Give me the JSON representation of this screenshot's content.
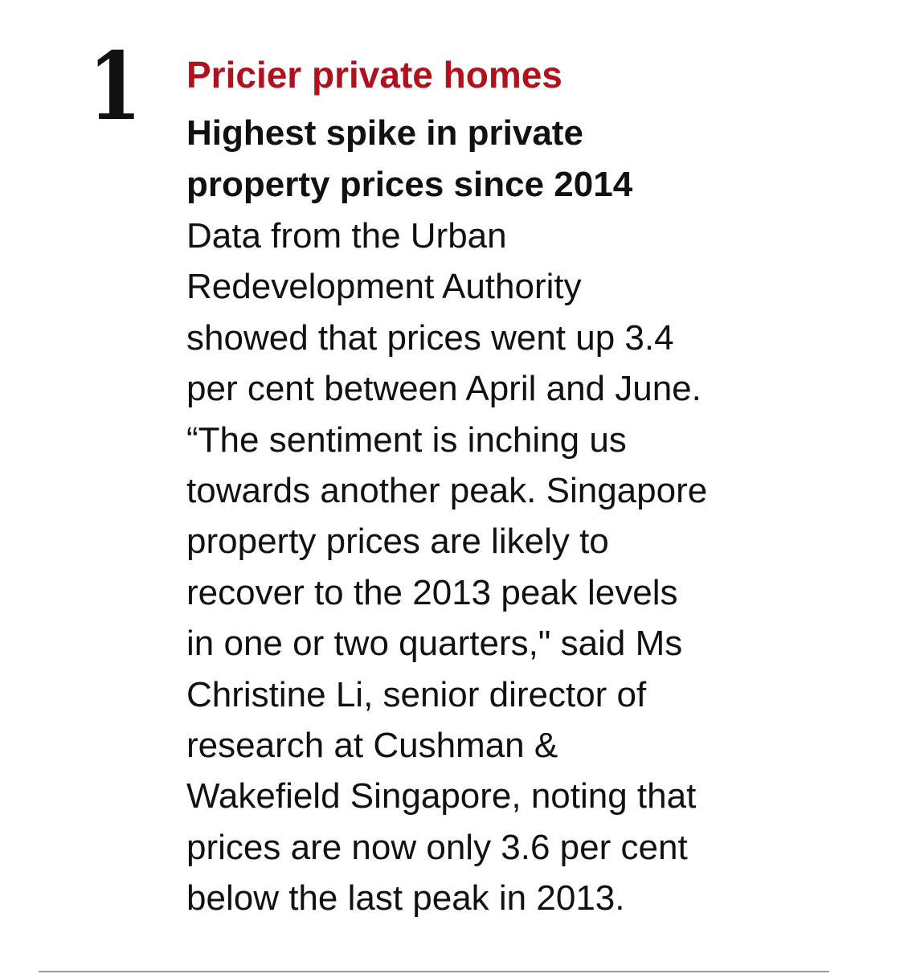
{
  "item": {
    "number": "1",
    "kicker": "Pricier private homes",
    "kicker_color": "#b0121d",
    "headline_lines": [
      "Highest spike in private",
      "property prices since 2014"
    ],
    "body_lines": [
      "Data from the Urban",
      "Redevelopment Authority",
      "showed that prices went up 3.4",
      "per cent between April and June.",
      "“The sentiment is inching us",
      "towards another peak. Singapore",
      "property prices are likely to",
      "recover to the 2013 peak levels",
      "in one or two quarters,\" said Ms",
      "Christine Li, senior director of",
      "research at Cushman &",
      "Wakefield Singapore, noting that",
      "prices are now only 3.6 per cent",
      "below the last peak in 2013."
    ]
  }
}
